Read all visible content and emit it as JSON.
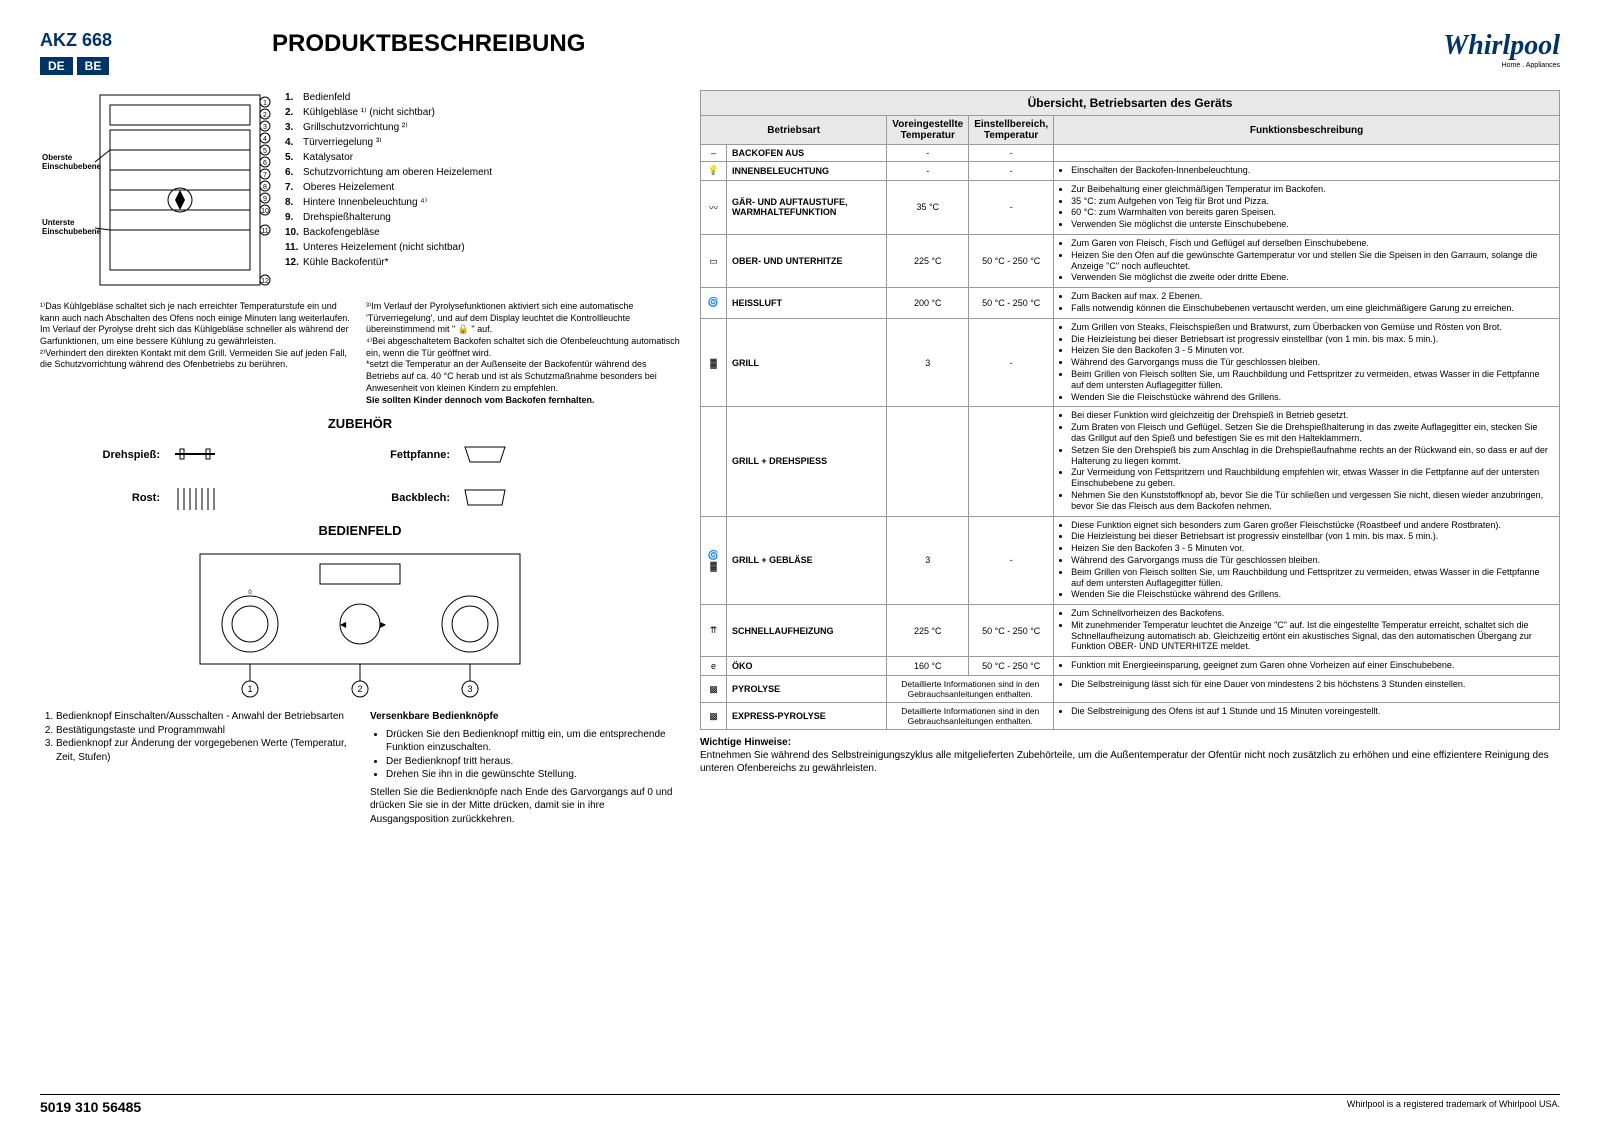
{
  "header": {
    "model": "AKZ 668",
    "locales": [
      "DE",
      "BE"
    ],
    "title": "PRODUKTBESCHREIBUNG",
    "logo": "Whirlpool",
    "logo_sub": "Home . Appliances"
  },
  "oven_labels": {
    "top": "Oberste Einschubebene",
    "bottom": "Unterste Einschubebene"
  },
  "legend": [
    "Bedienfeld",
    "Kühlgebläse ¹⁾ (nicht sichtbar)",
    "Grillschutzvorrichtung ²⁾",
    "Türverriegelung ³⁾",
    "Katalysator",
    "Schutzvorrichtung am oberen Heizelement",
    "Oberes Heizelement",
    "Hintere Innenbeleuchtung ⁴⁾",
    "Drehspießhalterung",
    "Backofengebläse",
    "Unteres Heizelement (nicht sichtbar)",
    "Kühle Backofentür*"
  ],
  "footnotes": {
    "left1": "¹⁾Das Kühlgebläse schaltet sich je nach erreichter Temperaturstufe ein und kann auch nach Abschalten des Ofens noch einige Minuten lang weiterlaufen.",
    "left2": "Im Verlauf der Pyrolyse dreht sich das Kühlgebläse schneller als während der Garfunktionen, um eine bessere Kühlung zu gewährleisten.",
    "left3": "²⁾Verhindert den direkten Kontakt mit dem Grill. Vermeiden Sie auf jeden Fall, die Schutzvorrichtung während des Ofenbetriebs zu berühren.",
    "right1": "³⁾Im Verlauf der Pyrolysefunktionen aktiviert sich eine automatische 'Türverriegelung', und auf dem Display leuchtet die Kontrollleuchte übereinstimmend mit \" 🔒 \" auf.",
    "right2": "⁴⁾Bei abgeschaltetem Backofen schaltet sich die Ofenbeleuchtung automatisch ein, wenn die Tür geöffnet wird.",
    "right3": "*setzt die Temperatur an der Außenseite der Backofentür während des Betriebs auf ca. 40 °C herab und ist als Schutzmaßnahme besonders bei Anwesenheit von kleinen Kindern zu empfehlen.",
    "right4": "Sie sollten Kinder dennoch vom Backofen fernhalten."
  },
  "sections": {
    "accessories": "ZUBEHÖR",
    "panel": "BEDIENFELD"
  },
  "accessories": {
    "spit": "Drehspieß:",
    "rack": "Rost:",
    "drip": "Fettpfanne:",
    "tray": "Backblech:"
  },
  "instructions": {
    "left_list": [
      "Bedienknopf Einschalten/Ausschalten - Anwahl der Betriebsarten",
      "Bestätigungstaste und Programmwahl",
      "Bedienknopf zur Änderung der vorgegebenen Werte (Temperatur, Zeit, Stufen)"
    ],
    "right_h": "Versenkbare Bedienknöpfe",
    "right_list": [
      "Drücken Sie den Bedienknopf mittig ein, um die entsprechende Funktion einzuschalten.",
      "Der Bedienknopf tritt heraus.",
      "Drehen Sie ihn in die gewünschte Stellung."
    ],
    "right_para": "Stellen Sie die Bedienknöpfe nach Ende des Garvorgangs auf 0 und drücken Sie sie in der Mitte drücken, damit sie in ihre Ausgangsposition zurückkehren."
  },
  "table": {
    "title": "Übersicht, Betriebsarten des Geräts",
    "headers": {
      "mode": "Betriebsart",
      "preset": "Voreingestellte Temperatur",
      "range": "Einstellbereich, Temperatur",
      "desc": "Funktionsbeschreibung"
    },
    "rows": [
      {
        "icon": "–",
        "name": "Backofen Aus",
        "preset": "-",
        "range": "-",
        "desc": []
      },
      {
        "icon": "💡",
        "name": "INNENBELEUCHTUNG",
        "preset": "-",
        "range": "-",
        "desc": [
          "Einschalten der Backofen-Innenbeleuchtung."
        ]
      },
      {
        "icon": "〰",
        "name": "GÄR- UND AUFTAUSTUFE, WARMHALTEFUNKTION",
        "preset": "35 °C",
        "range": "-",
        "desc": [
          "Zur Beibehaltung einer gleichmäßigen Temperatur im Backofen.",
          "35 °C: zum Aufgehen von Teig für Brot und Pizza.",
          "60 °C: zum Warmhalten von bereits garen Speisen.",
          "Verwenden Sie möglichst die unterste Einschubebene."
        ]
      },
      {
        "icon": "▭",
        "name": "OBER- UND UNTERHITZE",
        "preset": "225 °C",
        "range": "50 °C - 250 °C",
        "desc": [
          "Zum Garen von Fleisch, Fisch und Geflügel auf derselben Einschubebene.",
          "Heizen Sie den Ofen auf die gewünschte Gartemperatur vor und stellen Sie die Speisen in den Garraum, solange die Anzeige \"C\" noch aufleuchtet.",
          "Verwenden Sie möglichst die zweite oder dritte Ebene."
        ]
      },
      {
        "icon": "🌀",
        "name": "HEISSLUFT",
        "preset": "200 °C",
        "range": "50 °C - 250 °C",
        "desc": [
          "Zum Backen auf max. 2 Ebenen.",
          "Falls notwendig können die Einschubebenen vertauscht werden, um eine gleichmäßigere Garung zu erreichen."
        ]
      },
      {
        "icon": "▓",
        "name": "GRILL",
        "preset": "3",
        "range": "-",
        "desc": [
          "Zum Grillen von Steaks, Fleischspießen und Bratwurst, zum Überbacken von Gemüse und Rösten von Brot.",
          "Die Heizleistung bei dieser Betriebsart ist progressiv einstellbar (von 1 min. bis max. 5 min.).",
          "Heizen Sie den Backofen 3 - 5 Minuten vor.",
          "Während des Garvorgangs muss die Tür geschlossen bleiben.",
          "Beim Grillen von Fleisch sollten Sie, um Rauchbildung und Fettspritzer zu vermeiden, etwas Wasser in die Fettpfanne auf dem untersten Auflagegitter füllen.",
          "Wenden Sie die Fleischstücke während des Grillens."
        ]
      },
      {
        "icon": "",
        "name": "GRILL + DREHSPIESS",
        "preset": "",
        "range": "",
        "desc": [
          "Bei dieser Funktion wird gleichzeitig der Drehspieß in Betrieb gesetzt.",
          "Zum Braten von Fleisch und Geflügel. Setzen Sie die Drehspießhalterung in das zweite Auflagegitter ein, stecken Sie das Grillgut auf den Spieß und befestigen Sie es mit den Halteklammern.",
          "Setzen Sie den Drehspieß bis zum Anschlag in die Drehspießaufnahme rechts an der Rückwand ein, so dass er auf der Halterung zu liegen kommt.",
          "Zur Vermeidung von Fettspritzern und Rauchbildung empfehlen wir, etwas Wasser in die Fettpfanne auf der untersten Einschubebene zu geben.",
          "Nehmen Sie den Kunststoffknopf ab, bevor Sie die Tür schließen und vergessen Sie nicht, diesen wieder anzubringen, bevor Sie das Fleisch aus dem Backofen nehmen."
        ]
      },
      {
        "icon": "🌀▓",
        "name": "GRILL + GEBLÄSE",
        "preset": "3",
        "range": "-",
        "desc": [
          "Diese Funktion eignet sich besonders zum Garen großer Fleischstücke (Roastbeef und andere Rostbraten).",
          "Die Heizleistung bei dieser Betriebsart ist progressiv einstellbar (von 1 min. bis max. 5 min.).",
          "Heizen Sie den Backofen 3 - 5 Minuten vor.",
          "Während des Garvorgangs muss die Tür geschlossen bleiben.",
          "Beim Grillen von Fleisch sollten Sie, um Rauchbildung und Fettspritzer zu vermeiden, etwas Wasser in die Fettpfanne auf dem untersten Auflagegitter füllen.",
          "Wenden Sie die Fleischstücke während des Grillens."
        ]
      },
      {
        "icon": "⇈",
        "name": "SCHNELLAUFHEIZUNG",
        "preset": "225 °C",
        "range": "50 °C - 250 °C",
        "desc": [
          "Zum Schnellvorheizen des Backofens.",
          "Mit zunehmender Temperatur leuchtet die Anzeige \"C\" auf. Ist die eingestellte Temperatur erreicht, schaltet sich die Schnellaufheizung automatisch ab. Gleichzeitig ertönt ein akustisches Signal, das den automatischen Übergang zur Funktion OBER- UND UNTERHITZE meldet."
        ]
      },
      {
        "icon": "e",
        "name": "ÖKO",
        "preset": "160 °C",
        "range": "50 °C - 250 °C",
        "desc": [
          "Funktion mit Energieeinsparung, geeignet zum Garen ohne Vorheizen auf einer Einschubebene."
        ]
      },
      {
        "icon": "▩",
        "name": "PYROLYSE",
        "span": "Detaillierte Informationen sind in den Gebrauchsanleitungen enthalten.",
        "desc": [
          "Die Selbstreinigung lässt sich für eine Dauer von mindestens 2 bis höchstens 3 Stunden einstellen."
        ]
      },
      {
        "icon": "▩",
        "name": "EXPRESS-PYROLYSE",
        "span": "Detaillierte Informationen sind in den Gebrauchsanleitungen enthalten.",
        "desc": [
          "Die Selbstreinigung des Ofens ist auf 1 Stunde und 15 Minuten voreingestellt."
        ]
      }
    ]
  },
  "notes": {
    "h": "Wichtige Hinweise:",
    "p": "Entnehmen Sie während des Selbstreinigungszyklus alle mitgelieferten Zubehörteile, um die Außentemperatur der Ofentür nicht noch zusätzlich zu erhöhen und eine effizientere Reinigung des unteren Ofenbereichs zu gewährleisten."
  },
  "footer": {
    "left": "5019 310 56485",
    "right": "Whirlpool is a registered trademark of Whirlpool USA."
  },
  "colors": {
    "brand": "#003366",
    "border": "#999999",
    "th_bg": "#e8e8e8"
  }
}
